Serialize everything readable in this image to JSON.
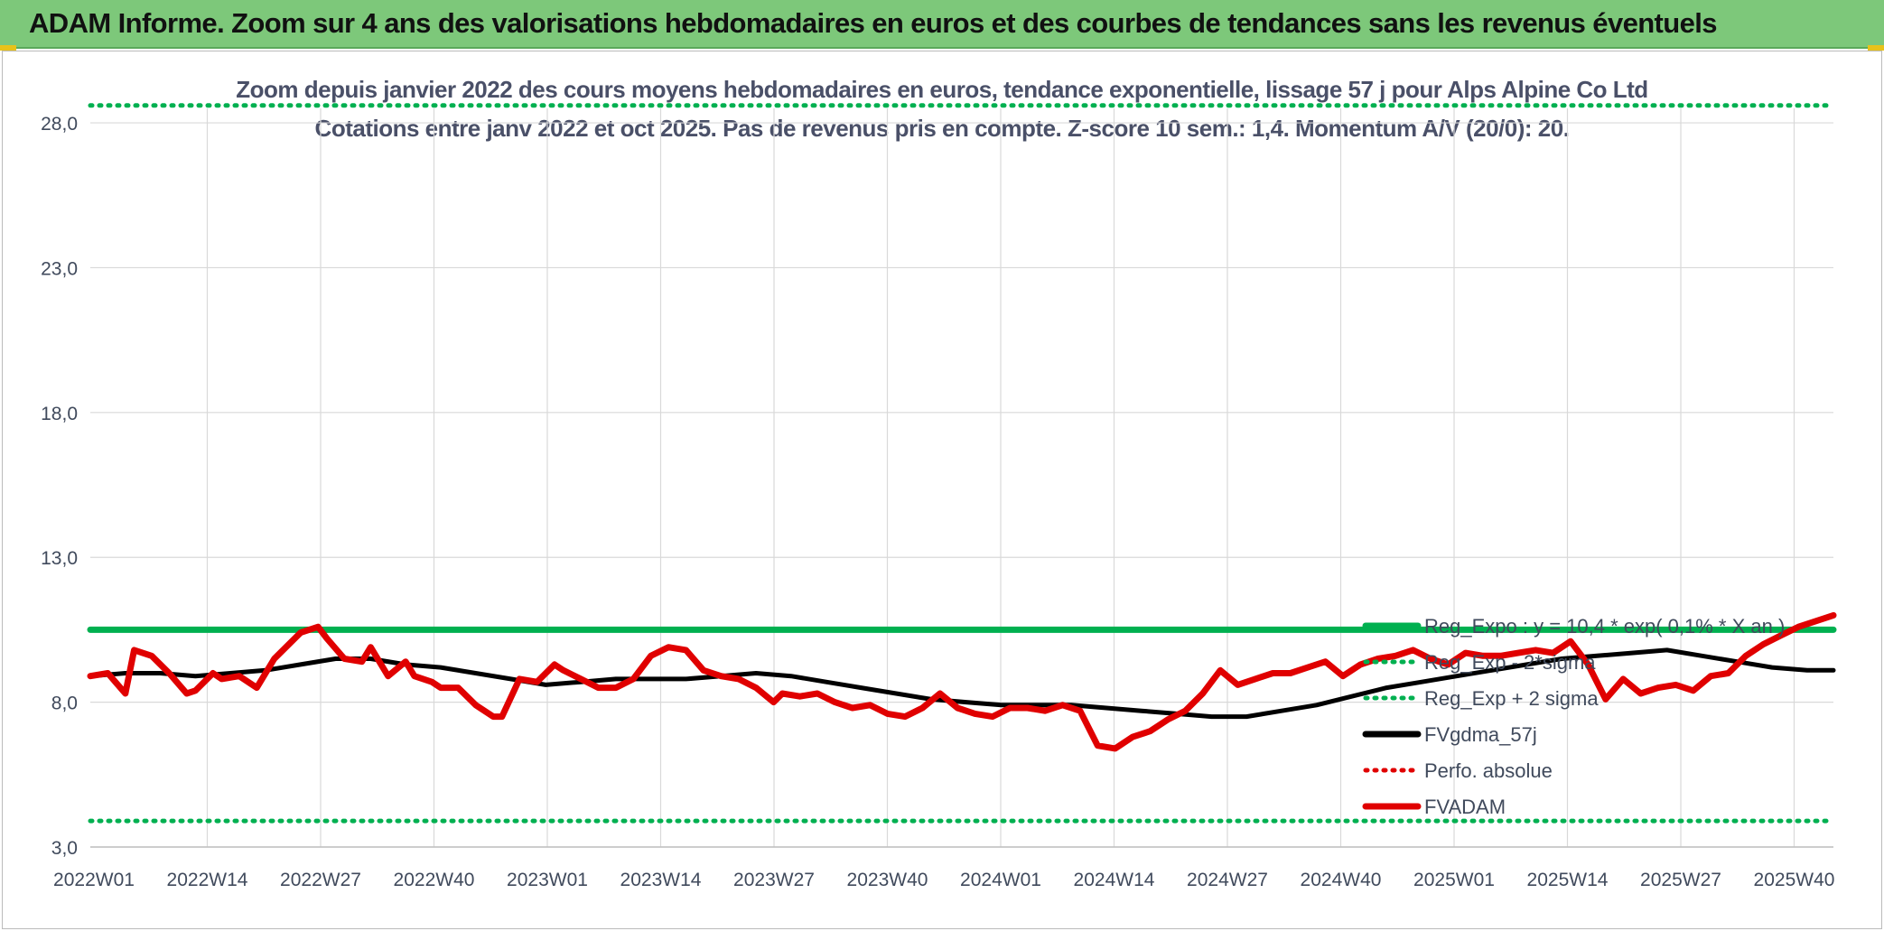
{
  "banner": {
    "title": "ADAM Informe. Zoom sur 4 ans des valorisations hebdomadaires en euros et des courbes de tendances sans les revenus éventuels"
  },
  "colors": {
    "banner_bg": "#7dc87a",
    "green": "#00b050",
    "red": "#e00000",
    "black": "#000000",
    "grid": "#d9d9d9",
    "text": "#404a5c"
  },
  "chart_data": {
    "type": "line",
    "title": "Zoom depuis janvier 2022 des cours moyens hebdomadaires en euros, tendance exponentielle, lissage 57 j pour Alps Alpine Co Ltd",
    "subtitle": "Cotations entre janv 2022 et oct 2025. Pas de revenus pris en compte. Z-score 10 sem.: 1,4. Momentum A/V (20/0): 20.",
    "x_ticks": [
      "2022W01",
      "2022W14",
      "2022W27",
      "2022W40",
      "2023W01",
      "2023W14",
      "2023W27",
      "2023W40",
      "2024W01",
      "2024W14",
      "2024W27",
      "2024W40",
      "2025W01",
      "2025W14",
      "2025W27",
      "2025W40"
    ],
    "y_ticks": [
      "3,0",
      "8,0",
      "13,0",
      "18,0",
      "23,0",
      "28,0"
    ],
    "ylim": [
      3,
      28.5
    ],
    "x_range": [
      0,
      199
    ],
    "grid": true,
    "legend_position": "bottom-right",
    "legend": [
      {
        "label": "Reg_Expo : y = 10,4 * exp( 0,1% *  X  an )",
        "style": "solid",
        "color": "#00b050"
      },
      {
        "label": "Reg_Exp - 2*sigma",
        "style": "dotted",
        "color": "#00b050"
      },
      {
        "label": "Reg_Exp + 2 sigma",
        "style": "dotted",
        "color": "#00b050"
      },
      {
        "label": "FVgdma_57j",
        "style": "solid",
        "color": "#000000"
      },
      {
        "label": "Perfo. absolue",
        "style": "dotted",
        "color": "#e00000"
      },
      {
        "label": "FVADAM",
        "style": "solid",
        "color": "#e00000"
      }
    ],
    "series": {
      "reg_expo": {
        "x": [
          0,
          199
        ],
        "y": [
          10.5,
          10.5
        ]
      },
      "reg_minus": {
        "x": [
          0,
          199
        ],
        "y": [
          3.9,
          3.9
        ]
      },
      "reg_plus": {
        "x": [
          0,
          199
        ],
        "y": [
          28.6,
          28.6
        ]
      },
      "fvgdma": {
        "x": [
          0,
          4,
          8,
          12,
          16,
          20,
          24,
          28,
          32,
          36,
          40,
          44,
          48,
          52,
          56,
          60,
          64,
          68,
          72,
          76,
          80,
          84,
          88,
          92,
          96,
          100,
          104,
          108,
          112,
          116,
          120,
          124,
          128,
          132,
          136,
          140,
          144,
          148,
          152,
          156,
          160,
          164,
          168,
          172,
          176,
          180,
          184,
          188,
          192,
          196,
          199
        ],
        "y": [
          8.9,
          9.0,
          9.0,
          8.9,
          9.0,
          9.1,
          9.3,
          9.5,
          9.5,
          9.3,
          9.2,
          9.0,
          8.8,
          8.6,
          8.7,
          8.8,
          8.8,
          8.8,
          8.9,
          9.0,
          8.9,
          8.7,
          8.5,
          8.3,
          8.1,
          8.0,
          7.9,
          7.9,
          7.9,
          7.8,
          7.7,
          7.6,
          7.5,
          7.5,
          7.7,
          7.9,
          8.2,
          8.5,
          8.7,
          8.9,
          9.1,
          9.3,
          9.5,
          9.6,
          9.7,
          9.8,
          9.6,
          9.4,
          9.2,
          9.1,
          9.1
        ]
      },
      "fvadam": {
        "x": [
          0,
          2,
          4,
          5,
          7,
          9,
          11,
          12,
          14,
          15,
          17,
          19,
          21,
          22,
          24,
          26,
          27,
          29,
          31,
          32,
          34,
          36,
          37,
          39,
          40,
          42,
          44,
          46,
          47,
          49,
          51,
          53,
          54,
          56,
          58,
          60,
          62,
          64,
          66,
          68,
          70,
          72,
          74,
          76,
          78,
          79,
          81,
          83,
          85,
          87,
          89,
          91,
          93,
          95,
          97,
          99,
          101,
          103,
          105,
          107,
          109,
          111,
          113,
          115,
          117,
          119,
          121,
          123,
          125,
          127,
          129,
          131,
          133,
          135,
          137,
          139,
          141,
          143,
          145,
          147,
          149,
          151,
          153,
          155,
          157,
          159,
          161,
          163,
          165,
          167,
          169,
          171,
          173,
          175,
          177,
          179,
          181,
          183,
          185,
          187,
          189,
          191,
          193,
          195,
          197,
          199
        ],
        "y": [
          8.9,
          9.0,
          8.3,
          9.8,
          9.6,
          9.0,
          8.3,
          8.4,
          9.0,
          8.8,
          8.9,
          8.5,
          9.5,
          9.8,
          10.4,
          10.6,
          10.2,
          9.5,
          9.4,
          9.9,
          8.9,
          9.4,
          8.9,
          8.7,
          8.5,
          8.5,
          7.9,
          7.5,
          7.5,
          8.8,
          8.7,
          9.3,
          9.1,
          8.8,
          8.5,
          8.5,
          8.8,
          9.6,
          9.9,
          9.8,
          9.1,
          8.9,
          8.8,
          8.5,
          8.0,
          8.3,
          8.2,
          8.3,
          8.0,
          7.8,
          7.9,
          7.6,
          7.5,
          7.8,
          8.3,
          7.8,
          7.6,
          7.5,
          7.8,
          7.8,
          7.7,
          7.9,
          7.7,
          6.5,
          6.4,
          6.8,
          7.0,
          7.4,
          7.7,
          8.3,
          9.1,
          8.6,
          8.8,
          9.0,
          9.0,
          9.2,
          9.4,
          8.9,
          9.3,
          9.5,
          9.6,
          9.8,
          9.5,
          9.3,
          9.7,
          9.6,
          9.6,
          9.7,
          9.8,
          9.7,
          10.1,
          9.3,
          8.1,
          8.8,
          8.3,
          8.5,
          8.6,
          8.4,
          8.9,
          9.0,
          9.6,
          10.0,
          10.3,
          10.6,
          10.8,
          11.0
        ]
      }
    }
  }
}
